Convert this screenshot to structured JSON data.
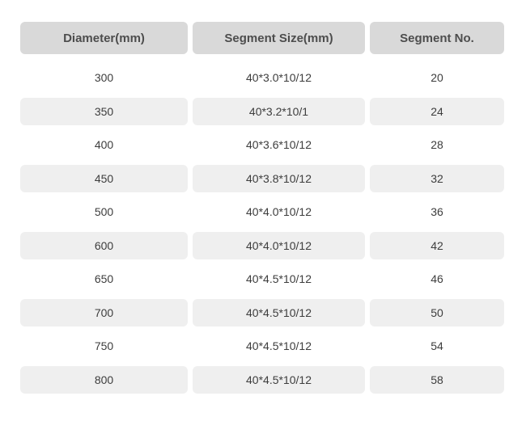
{
  "colors": {
    "header_bg": "#d9d9d9",
    "header_text": "#4d4d4d",
    "row_alt_bg": "#efefef",
    "cell_text": "#3d3d3d",
    "page_bg": "#ffffff"
  },
  "chart_data": {
    "type": "table",
    "title": "",
    "columns": [
      "Diameter(mm)",
      "Segment Size(mm)",
      "Segment No."
    ],
    "rows": [
      [
        "300",
        "40*3.0*10/12",
        "20"
      ],
      [
        "350",
        "40*3.2*10/1",
        "24"
      ],
      [
        "400",
        "40*3.6*10/12",
        "28"
      ],
      [
        "450",
        "40*3.8*10/12",
        "32"
      ],
      [
        "500",
        "40*4.0*10/12",
        "36"
      ],
      [
        "600",
        "40*4.0*10/12",
        "42"
      ],
      [
        "650",
        "40*4.5*10/12",
        "46"
      ],
      [
        "700",
        "40*4.5*10/12",
        "50"
      ],
      [
        "750",
        "40*4.5*10/12",
        "54"
      ],
      [
        "800",
        "40*4.5*10/12",
        "58"
      ]
    ],
    "layout_hints": {
      "striped": "alternate rows shaded starting with second data row",
      "cell_alignment": "center",
      "rounded_cells": true
    }
  }
}
